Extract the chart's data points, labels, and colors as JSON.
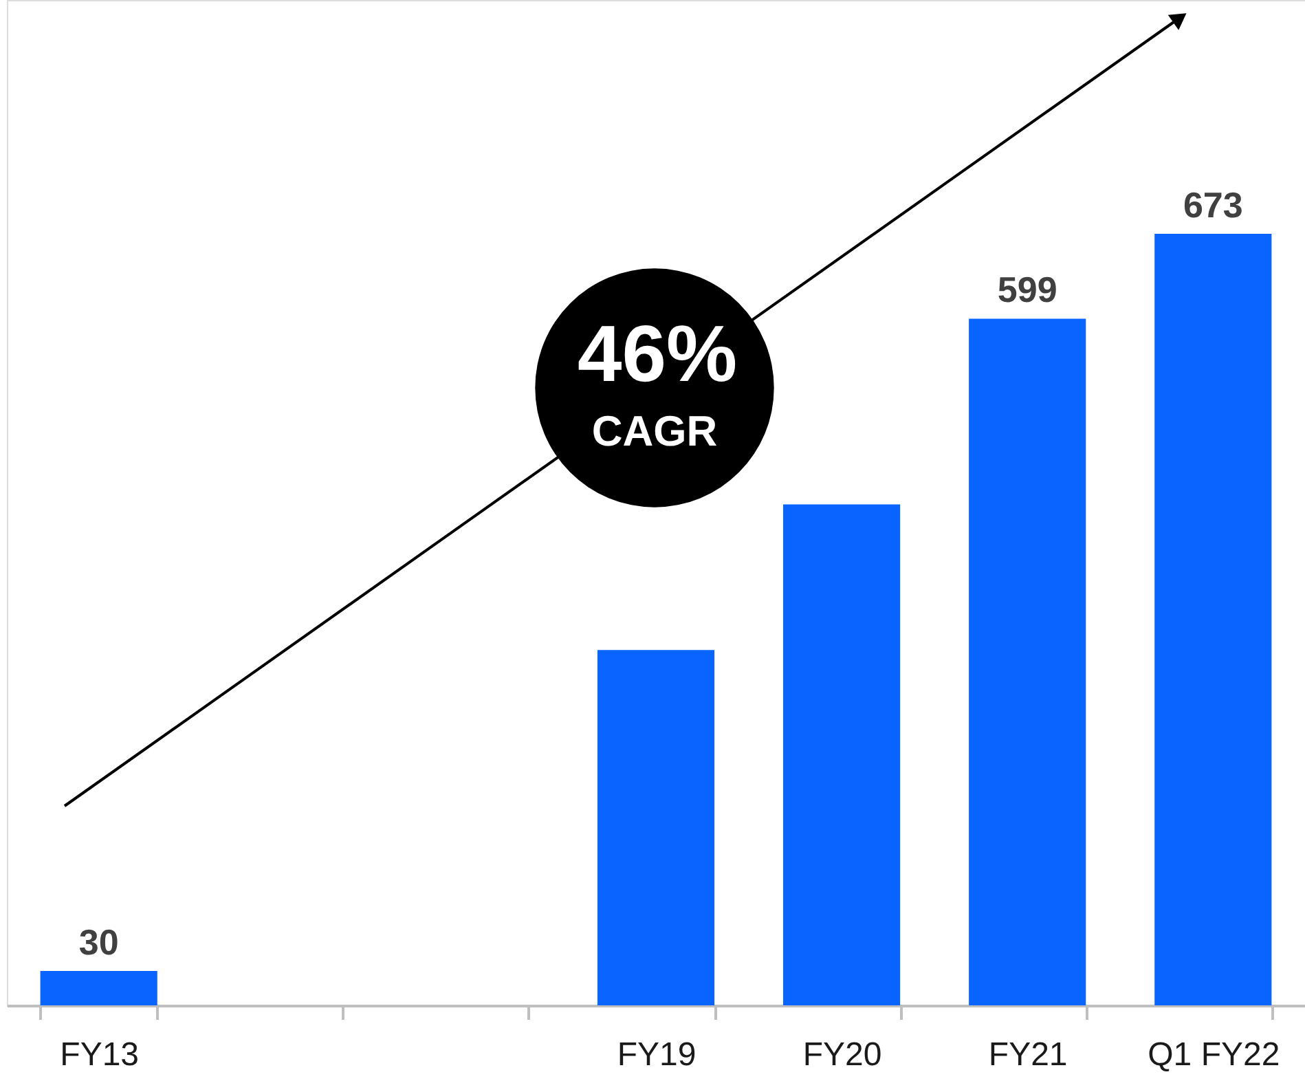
{
  "chart_data": {
    "type": "bar",
    "categories": [
      "FY13",
      null,
      null,
      "FY19",
      "FY20",
      "FY21",
      "Q1 FY22"
    ],
    "values": [
      30,
      null,
      null,
      310,
      437,
      599,
      673
    ],
    "value_labels": [
      "30",
      null,
      null,
      null,
      null,
      "599",
      "673"
    ],
    "color": "#0a64ff",
    "ylim": [
      0,
      877
    ],
    "tick_labels": "x",
    "grid": false,
    "annotations": [
      "46%",
      "CAGR"
    ]
  }
}
